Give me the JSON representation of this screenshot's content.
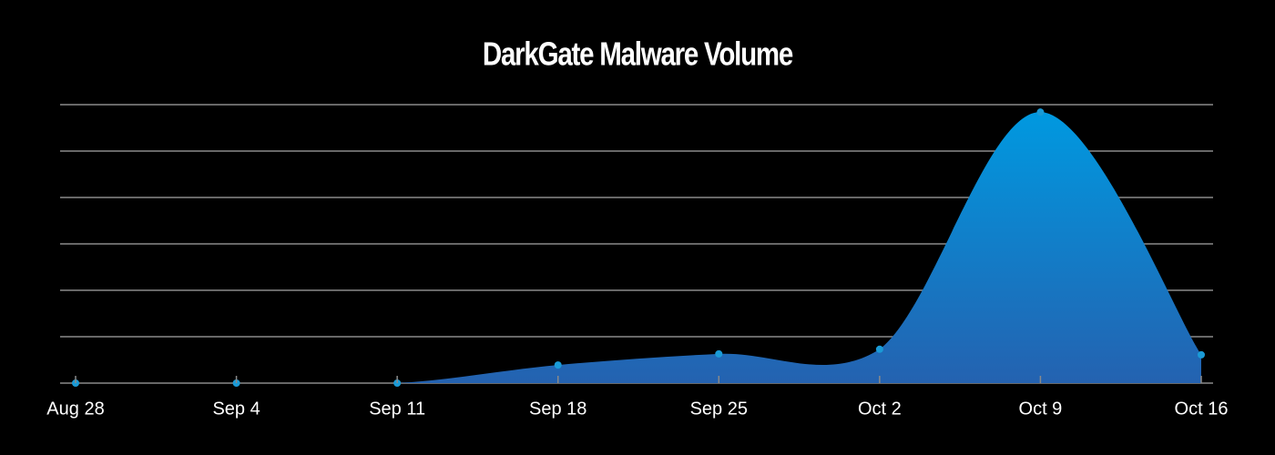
{
  "chart_data": {
    "type": "area",
    "title": "DarkGate Malware Volume",
    "categories": [
      "Aug 28",
      "Sep 4",
      "Sep 11",
      "Sep 18",
      "Sep 25",
      "Oct 2",
      "Oct 9",
      "Oct 16"
    ],
    "values": [
      0,
      0,
      0,
      0.39,
      0.63,
      0.73,
      5.84,
      0.61
    ],
    "color": "#1a9ad6",
    "ylim": [
      0,
      6
    ],
    "yticks": [
      0,
      1,
      2,
      3,
      4,
      5,
      6
    ],
    "grid": true
  }
}
